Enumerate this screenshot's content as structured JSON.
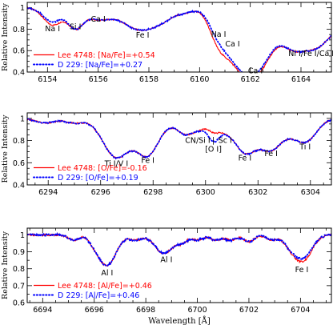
{
  "chart_data": [
    {
      "type": "line",
      "ylabel": "Relative Intensity",
      "xlim": [
        6153.2,
        6165.2
      ],
      "ylim": [
        0.4,
        1.05
      ],
      "xticks": [
        6154,
        6156,
        6158,
        6160,
        6162,
        6164
      ],
      "yticks": [
        0.4,
        0.6,
        0.8,
        1.0
      ],
      "legend": "lower-left",
      "series": [
        {
          "name": "Lee 4748: [Na/Fe]=+0.54",
          "color": "#ff0000",
          "style": "solid",
          "lines": [
            [
              6154.2,
              0.16,
              0.85
            ],
            [
              6155.1,
              0.18,
              0.7
            ],
            [
              6156.0,
              0.1,
              1.1
            ],
            [
              6157.7,
              0.21,
              1.7
            ],
            [
              6158.6,
              0.04,
              0.8
            ],
            [
              6159.4,
              0.04,
              0.8
            ],
            [
              6160.7,
              0.18,
              0.8
            ],
            [
              6161.3,
              0.28,
              1.3
            ],
            [
              6162.2,
              0.56,
              1.5
            ],
            [
              6163.4,
              0.04,
              0.7
            ],
            [
              6163.75,
              0.06,
              0.7
            ],
            [
              6164.4,
              0.39,
              2.1
            ]
          ]
        },
        {
          "name": "D 229: [Na/Fe]=+0.27",
          "color": "#0000ff",
          "style": "dotted",
          "lines": [
            [
              6154.2,
              0.13,
              0.85
            ],
            [
              6155.1,
              0.18,
              0.7
            ],
            [
              6156.0,
              0.1,
              1.1
            ],
            [
              6157.7,
              0.21,
              1.7
            ],
            [
              6158.6,
              0.04,
              0.8
            ],
            [
              6159.4,
              0.04,
              0.8
            ],
            [
              6160.7,
              0.12,
              0.8
            ],
            [
              6161.3,
              0.28,
              1.3
            ],
            [
              6162.2,
              0.53,
              1.5
            ],
            [
              6163.4,
              0.04,
              0.7
            ],
            [
              6163.75,
              0.06,
              0.7
            ],
            [
              6164.4,
              0.39,
              2.1
            ]
          ]
        }
      ],
      "annotations": [
        {
          "text": "Na I",
          "x": 6154.2,
          "y": 0.78
        },
        {
          "text": "Si I",
          "x": 6155.1,
          "y": 0.8
        },
        {
          "text": "Ca I",
          "x": 6156.0,
          "y": 0.87
        },
        {
          "text": "Fe I",
          "x": 6157.75,
          "y": 0.72
        },
        {
          "text": "Na I",
          "x": 6160.75,
          "y": 0.73
        },
        {
          "text": "Ca I",
          "x": 6161.3,
          "y": 0.64
        },
        {
          "text": "Ca I",
          "x": 6162.2,
          "y": 0.39
        },
        {
          "text": "Ni I/Fe I/Ca I",
          "x": 6164.4,
          "y": 0.55
        }
      ]
    },
    {
      "type": "line",
      "ylabel": "Relative Intensity",
      "xlim": [
        6293.2,
        6304.8
      ],
      "ylim": [
        0.4,
        1.05
      ],
      "xticks": [
        6294,
        6296,
        6298,
        6300,
        6302,
        6304
      ],
      "yticks": [
        0.4,
        0.6,
        0.8,
        1.0
      ],
      "legend": "lower-left",
      "series": [
        {
          "name": "Lee 4748: [O/Fe]=-0.16",
          "color": "#ff0000",
          "style": "solid",
          "lines": [
            [
              6293.9,
              0.04,
              0.9
            ],
            [
              6295.0,
              0.04,
              0.8
            ],
            [
              6296.6,
              0.35,
              1.2
            ],
            [
              6297.8,
              0.32,
              1.0
            ],
            [
              6298.8,
              0.04,
              0.8
            ],
            [
              6299.2,
              0.1,
              0.6
            ],
            [
              6299.7,
              0.1,
              0.7
            ],
            [
              6300.3,
              0.09,
              0.5
            ],
            [
              6300.7,
              0.07,
              0.6
            ],
            [
              6301.5,
              0.3,
              1.0
            ],
            [
              6302.5,
              0.27,
              1.0
            ],
            [
              6303.2,
              0.04,
              0.7
            ],
            [
              6303.8,
              0.21,
              1.0
            ]
          ]
        },
        {
          "name": "D 229: [O/Fe]=+0.19",
          "color": "#0000ff",
          "style": "dotted",
          "lines": [
            [
              6293.9,
              0.04,
              0.9
            ],
            [
              6295.0,
              0.04,
              0.8
            ],
            [
              6296.6,
              0.35,
              1.2
            ],
            [
              6297.8,
              0.32,
              1.0
            ],
            [
              6298.8,
              0.04,
              0.8
            ],
            [
              6299.2,
              0.1,
              0.6
            ],
            [
              6299.7,
              0.1,
              0.7
            ],
            [
              6300.3,
              0.17,
              0.5
            ],
            [
              6300.7,
              0.07,
              0.6
            ],
            [
              6301.5,
              0.3,
              1.0
            ],
            [
              6302.5,
              0.27,
              1.0
            ],
            [
              6303.2,
              0.04,
              0.7
            ],
            [
              6303.8,
              0.21,
              1.0
            ]
          ]
        }
      ],
      "annotations": [
        {
          "text": "Ti I/V I",
          "x": 6296.6,
          "y": 0.57
        },
        {
          "text": "Fe I",
          "x": 6297.8,
          "y": 0.6
        },
        {
          "text": "CN/Si I",
          "x": 6299.7,
          "y": 0.78
        },
        {
          "text": "|",
          "x": 6300.3,
          "y": 0.78
        },
        {
          "text": "[O I]",
          "x": 6300.3,
          "y": 0.7
        },
        {
          "text": "Sc I",
          "x": 6300.75,
          "y": 0.78
        },
        {
          "text": "Fe I",
          "x": 6301.5,
          "y": 0.62
        },
        {
          "text": "Fe I",
          "x": 6302.5,
          "y": 0.66
        },
        {
          "text": "Ti I",
          "x": 6303.8,
          "y": 0.72
        }
      ]
    },
    {
      "type": "line",
      "ylabel": "Relative Intensity",
      "xlabel": "Wavelength [Å]",
      "xlim": [
        6693.4,
        6705.2
      ],
      "ylim": [
        0.6,
        1.04
      ],
      "xticks": [
        6694,
        6696,
        6698,
        6700,
        6702,
        6704
      ],
      "yticks": [
        0.6,
        0.7,
        0.8,
        0.9,
        1.0
      ],
      "legend": "lower-left",
      "series": [
        {
          "name": "Lee 4748: [Al/Fe]=+0.46",
          "color": "#ff0000",
          "style": "solid",
          "lines": [
            [
              6695.2,
              0.03,
              0.5
            ],
            [
              6696.0,
              0.03,
              0.5
            ],
            [
              6696.5,
              0.18,
              0.8
            ],
            [
              6697.6,
              0.03,
              0.6
            ],
            [
              6698.7,
              0.11,
              0.8
            ],
            [
              6699.4,
              0.04,
              0.5
            ],
            [
              6700.0,
              0.03,
              0.5
            ],
            [
              6700.7,
              0.03,
              0.5
            ],
            [
              6701.3,
              0.03,
              0.5
            ],
            [
              6702.0,
              0.04,
              0.5
            ],
            [
              6702.9,
              0.03,
              0.5
            ],
            [
              6703.6,
              0.05,
              0.6
            ],
            [
              6704.1,
              0.15,
              0.8
            ]
          ]
        },
        {
          "name": "D 229: [Al/Fe]=+0.46",
          "color": "#0000ff",
          "style": "dotted",
          "lines": [
            [
              6695.2,
              0.03,
              0.5
            ],
            [
              6696.0,
              0.03,
              0.5
            ],
            [
              6696.5,
              0.18,
              0.8
            ],
            [
              6697.6,
              0.03,
              0.6
            ],
            [
              6698.7,
              0.11,
              0.8
            ],
            [
              6699.4,
              0.04,
              0.5
            ],
            [
              6700.0,
              0.03,
              0.5
            ],
            [
              6700.7,
              0.03,
              0.5
            ],
            [
              6701.3,
              0.03,
              0.5
            ],
            [
              6702.0,
              0.04,
              0.5
            ],
            [
              6702.9,
              0.03,
              0.5
            ],
            [
              6703.6,
              0.05,
              0.6
            ],
            [
              6704.1,
              0.13,
              0.8
            ]
          ]
        }
      ],
      "annotations": [
        {
          "text": "Al I",
          "x": 6696.5,
          "y": 0.76
        },
        {
          "text": "Al I",
          "x": 6698.8,
          "y": 0.84
        },
        {
          "text": "Fe I",
          "x": 6704.05,
          "y": 0.78
        }
      ]
    }
  ]
}
